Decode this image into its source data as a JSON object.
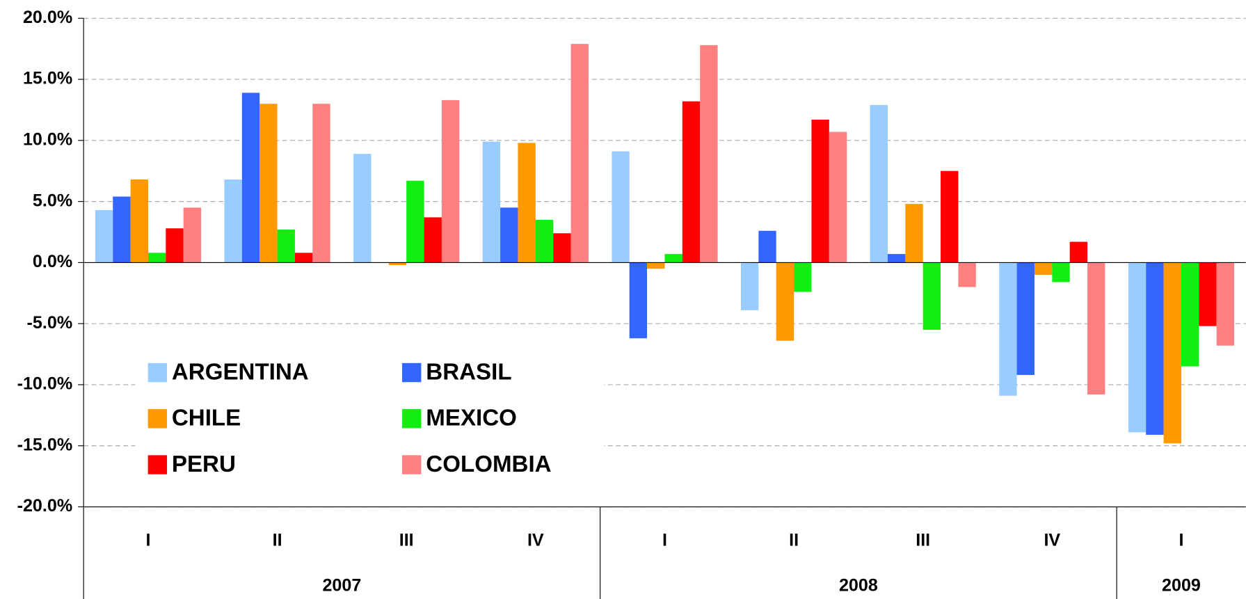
{
  "chart_data": {
    "type": "bar",
    "categories": [
      "I",
      "II",
      "III",
      "IV",
      "I",
      "II",
      "III",
      "IV",
      "I"
    ],
    "x_groups": [
      {
        "label": "2007",
        "count": 4
      },
      {
        "label": "2008",
        "count": 4
      },
      {
        "label": "2009",
        "count": 1
      }
    ],
    "series": [
      {
        "name": "ARGENTINA",
        "color": "#99ccff",
        "values": [
          4.3,
          6.8,
          8.9,
          9.9,
          9.1,
          -3.9,
          12.9,
          -10.9,
          -13.9
        ]
      },
      {
        "name": "BRASIL",
        "color": "#3366ff",
        "values": [
          5.4,
          13.9,
          0,
          4.5,
          -6.2,
          2.6,
          0.7,
          -9.2,
          -14.1
        ]
      },
      {
        "name": "CHILE",
        "color": "#ff9900",
        "values": [
          6.8,
          13.0,
          -0.2,
          9.8,
          -0.5,
          -6.4,
          4.8,
          -1.0,
          -14.8
        ]
      },
      {
        "name": "MEXICO",
        "color": "#11ee11",
        "values": [
          0.8,
          2.7,
          6.7,
          3.5,
          0.7,
          -2.4,
          -5.5,
          -1.6,
          -8.5
        ]
      },
      {
        "name": "PERU",
        "color": "#ff0000",
        "values": [
          2.8,
          0.8,
          3.7,
          2.4,
          13.2,
          11.7,
          7.5,
          1.7,
          -5.2
        ]
      },
      {
        "name": "COLOMBIA",
        "color": "#ff8080",
        "values": [
          4.5,
          13.0,
          13.3,
          17.9,
          17.8,
          10.7,
          -2.0,
          -10.8,
          -6.8
        ]
      }
    ],
    "ylim": [
      -20,
      20
    ],
    "yticks": [
      {
        "value": -20,
        "label": "-20.0%"
      },
      {
        "value": -15,
        "label": "-15.0%"
      },
      {
        "value": -10,
        "label": "-10.0%"
      },
      {
        "value": -5,
        "label": "-5.0%"
      },
      {
        "value": 0,
        "label": "0.0%"
      },
      {
        "value": 5,
        "label": "5.0%"
      },
      {
        "value": 10,
        "label": "10.0%"
      },
      {
        "value": 15,
        "label": "15.0%"
      },
      {
        "value": 20,
        "label": "20.0%"
      }
    ],
    "grid": true,
    "legend": "lower left"
  }
}
